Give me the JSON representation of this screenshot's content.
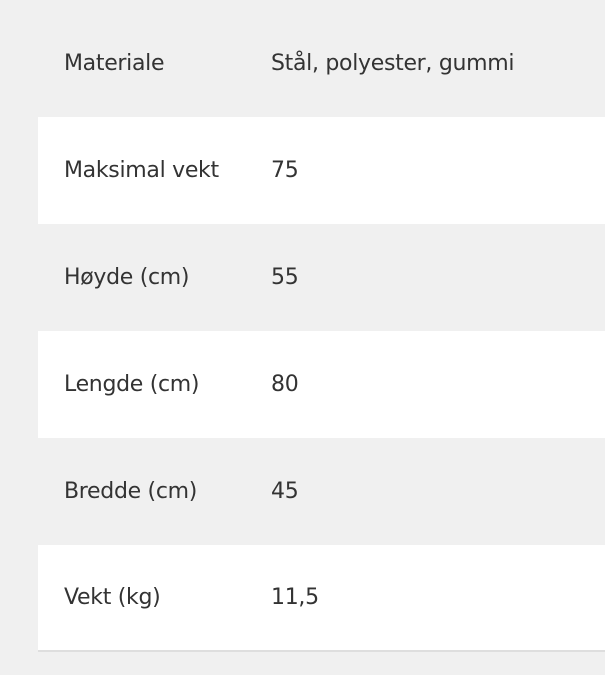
{
  "specs": [
    {
      "label": "Materiale",
      "value": "Stål, polyester, gummi"
    },
    {
      "label": "Maksimal vekt",
      "value": "75"
    },
    {
      "label": "Høyde (cm)",
      "value": "55"
    },
    {
      "label": "Lengde (cm)",
      "value": "80"
    },
    {
      "label": "Bredde (cm)",
      "value": "45"
    },
    {
      "label": "Vekt (kg)",
      "value": "11,5"
    }
  ]
}
